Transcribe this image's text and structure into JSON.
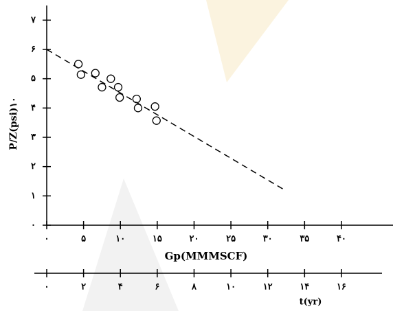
{
  "chart_data": {
    "type": "scatter",
    "y_label": "P/Z(psi)۱۰",
    "x_label": "Gp(MMMSCF)",
    "x2_label": "t(yr)",
    "x": [
      4.3,
      4.65,
      6.6,
      7.5,
      8.7,
      9.7,
      9.9,
      12.2,
      12.4,
      14.7,
      14.9
    ],
    "values": [
      5.5,
      5.14,
      5.19,
      4.71,
      5.0,
      4.71,
      4.36,
      4.31,
      4.0,
      4.05,
      3.57
    ],
    "trend": {
      "x": [
        0,
        32.3
      ],
      "values": [
        6.0,
        1.2
      ]
    },
    "xlim": [
      0,
      47
    ],
    "ylim": [
      0,
      7.5
    ],
    "x2lim": [
      0,
      18.8
    ],
    "xticks": [
      {
        "value": 0,
        "label": "۰"
      },
      {
        "value": 5,
        "label": "۵"
      },
      {
        "value": 10,
        "label": "۱۰"
      },
      {
        "value": 15,
        "label": "۱۵"
      },
      {
        "value": 20,
        "label": "۲۰"
      },
      {
        "value": 25,
        "label": "۲۵"
      },
      {
        "value": 30,
        "label": "۳۰"
      },
      {
        "value": 35,
        "label": "۳۵"
      },
      {
        "value": 40,
        "label": "۴۰"
      }
    ],
    "yticks": [
      {
        "value": 0,
        "label": "۰"
      },
      {
        "value": 1,
        "label": "۱"
      },
      {
        "value": 2,
        "label": "۲"
      },
      {
        "value": 3,
        "label": "۳"
      },
      {
        "value": 4,
        "label": "۴"
      },
      {
        "value": 5,
        "label": "۵"
      },
      {
        "value": 6,
        "label": "۶"
      },
      {
        "value": 7,
        "label": "۷"
      }
    ],
    "x2ticks": [
      {
        "value": 0,
        "label": "۰"
      },
      {
        "value": 2,
        "label": "۲"
      },
      {
        "value": 4,
        "label": "۴"
      },
      {
        "value": 6,
        "label": "۶"
      },
      {
        "value": 8,
        "label": "۸"
      },
      {
        "value": 10,
        "label": "۱۰"
      },
      {
        "value": 12,
        "label": "۱۲"
      },
      {
        "value": 14,
        "label": "۱۴"
      },
      {
        "value": 16,
        "label": "۱۶"
      }
    ]
  }
}
